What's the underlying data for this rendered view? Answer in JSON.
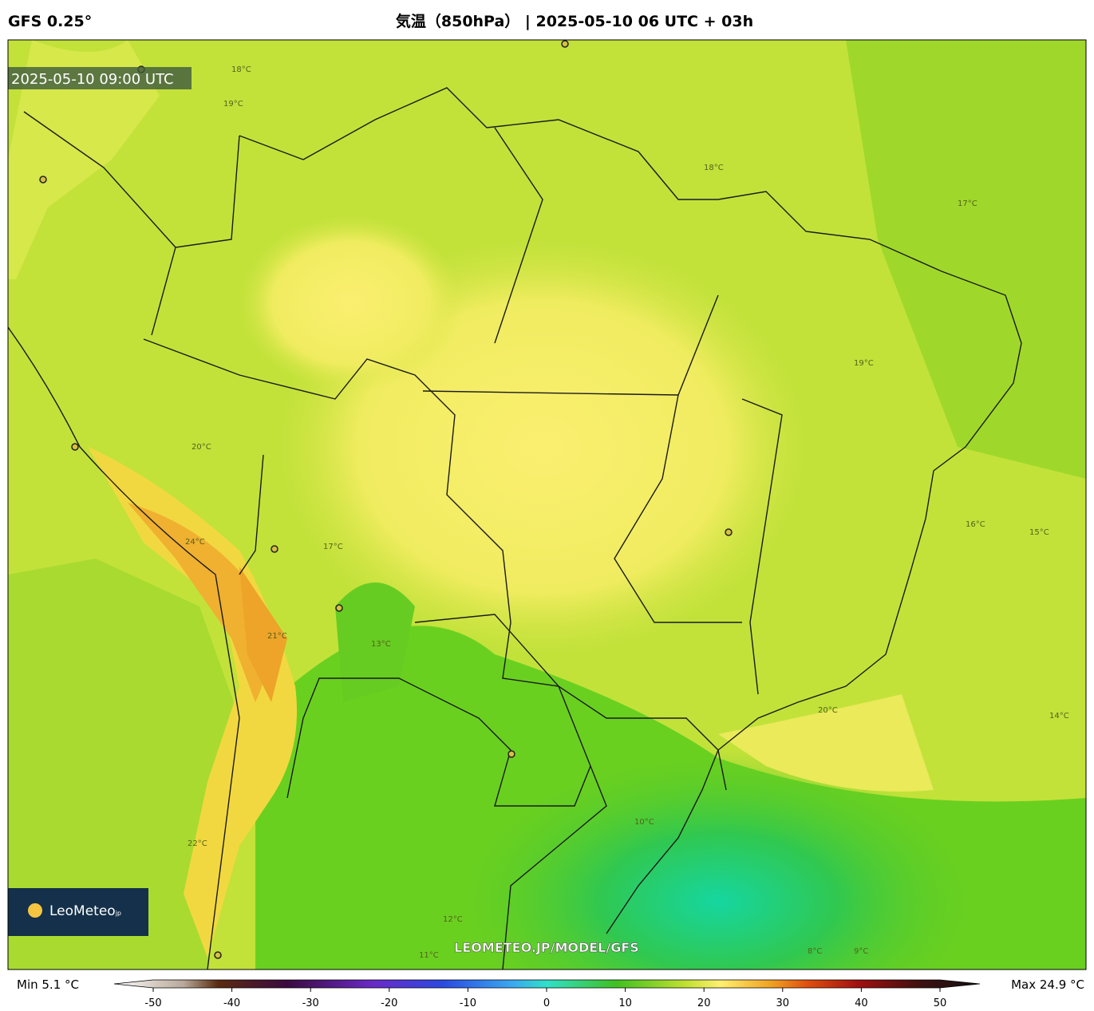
{
  "header": {
    "model": "GFS 0.25°",
    "title": "気温（850hPa） | 2025-05-10 06 UTC + 03h"
  },
  "map": {
    "valid_time": "2025-05-10 09:00 UTC",
    "watermark": "LEOMETEO.JP/MODEL/GFS",
    "logo": "LeoMeteo",
    "logo_suffix": "jp",
    "contour_labels": [
      "18°C",
      "19°C",
      "17°C",
      "18°C",
      "19°C",
      "20°C",
      "16°C",
      "15°C",
      "13°C",
      "12°C",
      "14°C",
      "10°C",
      "11°C",
      "9°C",
      "8°C",
      "21°C",
      "22°C",
      "24°C",
      "20°C",
      "17°C"
    ]
  },
  "colorbar": {
    "min_label": "Min 5.1 °C",
    "max_label": "Max 24.9 °C",
    "lim": [
      -50,
      50
    ],
    "ticks": [
      -50,
      -40,
      -30,
      -20,
      -10,
      0,
      10,
      20,
      30,
      40,
      50
    ]
  }
}
